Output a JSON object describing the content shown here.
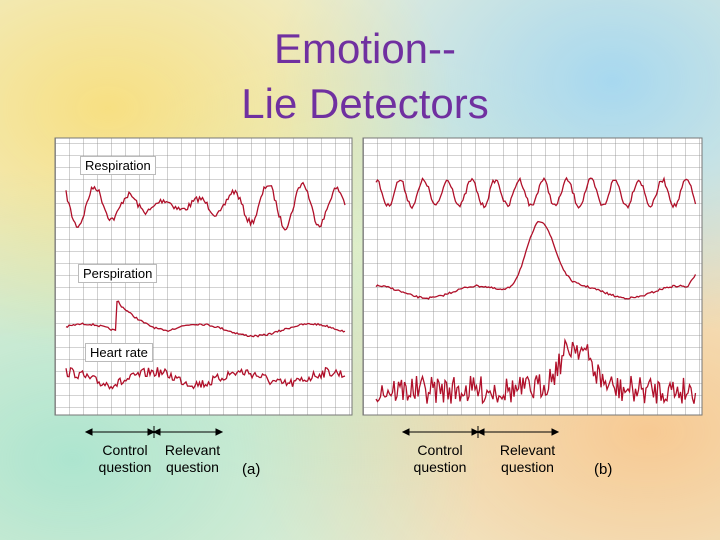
{
  "title": [
    "Emotion--",
    "Lie Detectors"
  ],
  "panel_a": {
    "traces": [
      "Respiration",
      "Perspiration",
      "Heart rate"
    ],
    "labels": [
      "Control question",
      "Relevant question"
    ],
    "caption": "(a)"
  },
  "panel_b": {
    "labels": [
      "Control question",
      "Relevant question"
    ],
    "caption": "(b)"
  }
}
